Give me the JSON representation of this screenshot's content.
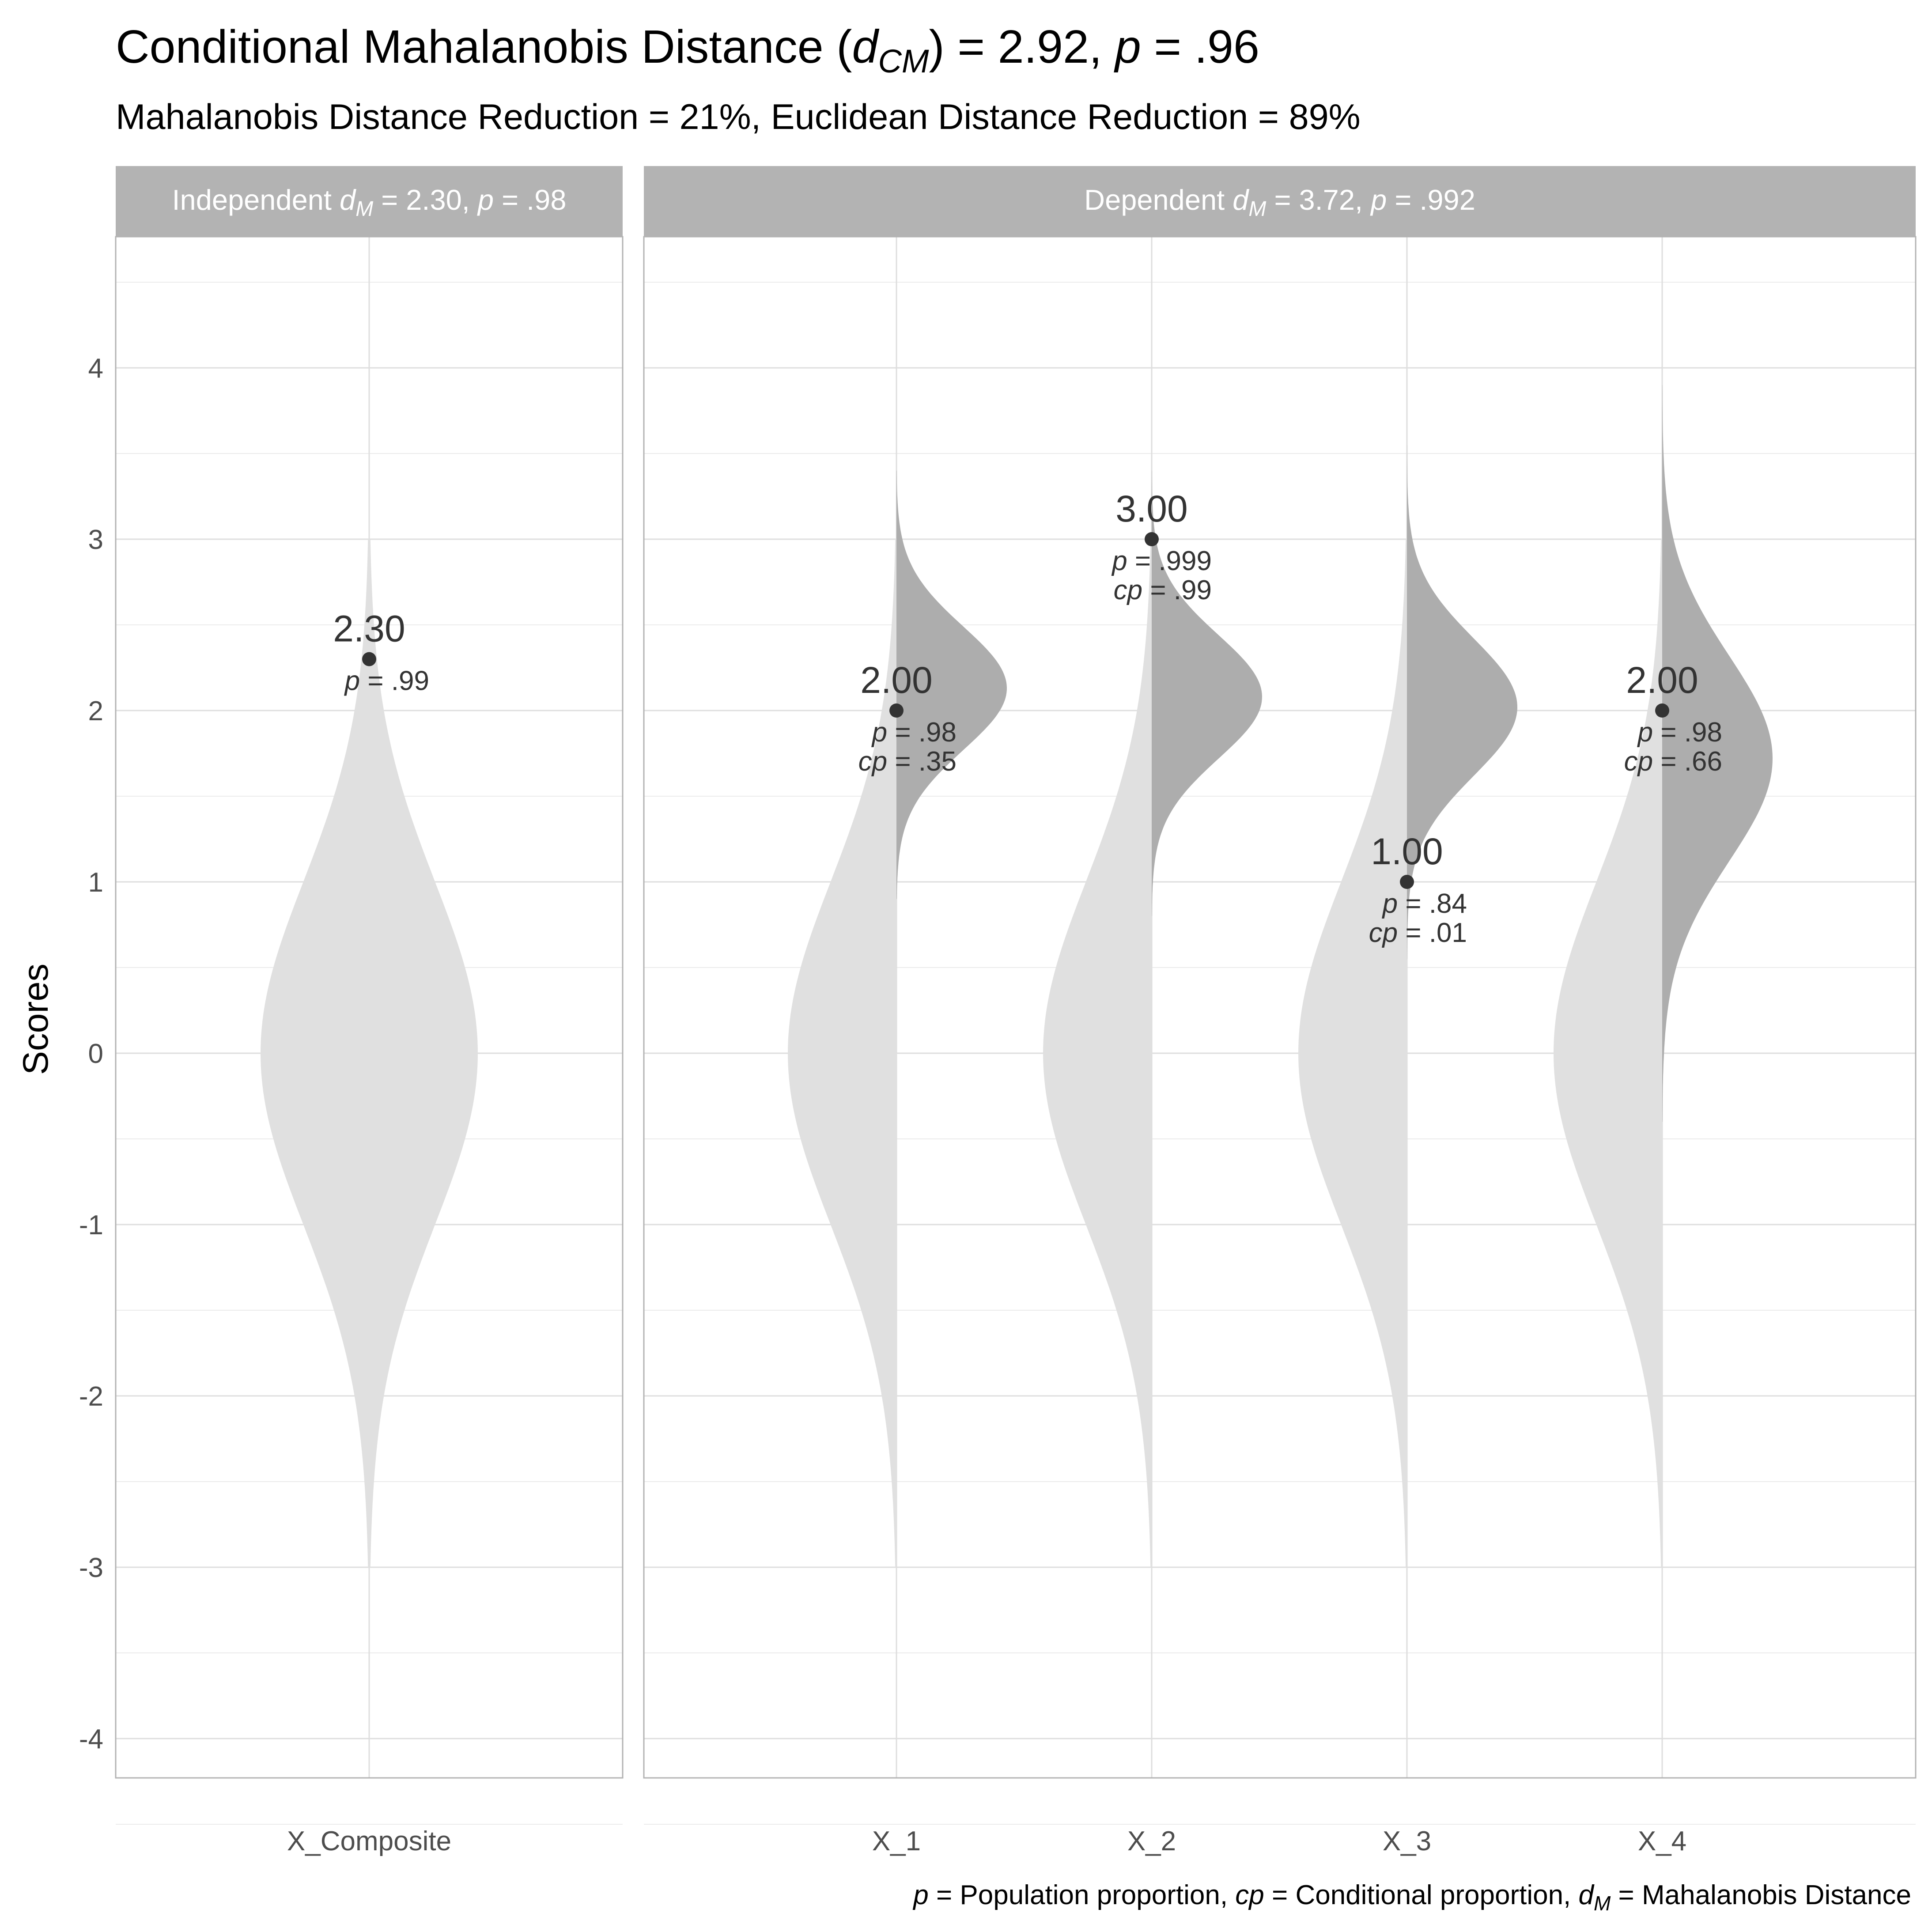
{
  "title": {
    "pre": "Conditional Mahalanobis Distance (",
    "var": "d",
    "sub": "CM",
    "mid": ") = 2.92, ",
    "pvar": "p",
    "post": " = .96"
  },
  "subtitle": "Mahalanobis Distance Reduction = 21%, Euclidean Distance Reduction = 89%",
  "caption": {
    "p_var": "p",
    "p_text": " = Population proportion, ",
    "cp_var": "cp",
    "cp_text": " = Conditional proportion, ",
    "d_var": "d",
    "d_sub": "M",
    "d_text": " = Mahalanobis Distance"
  },
  "colors": {
    "background": "#ffffff",
    "strip": "#b3b3b3",
    "marginal_violin": "#e0e0e0",
    "conditional_violin": "#adadad",
    "point": "#333333",
    "grid_major": "#dedede",
    "grid_minor": "#ebebeb"
  },
  "chart_data": {
    "type": "violin",
    "ylabel": "Scores",
    "ylim": [
      -4.6,
      4.75
    ],
    "yticks": [
      -4,
      -3,
      -2,
      -1,
      0,
      1,
      2,
      3,
      4
    ],
    "grid": true,
    "panels": [
      {
        "strip": {
          "pre": "Independent ",
          "var": "d",
          "sub": "M",
          "mid": " = 2.30, ",
          "pvar": "p",
          "post": " = .98"
        },
        "variables": [
          {
            "name": "X_Composite",
            "score": 2.3,
            "score_label": "2.30",
            "p": ".99",
            "marginal": {
              "mean": 0,
              "sd": 1,
              "range": [
                -3,
                3
              ]
            }
          }
        ]
      },
      {
        "strip": {
          "pre": "Dependent ",
          "var": "d",
          "sub": "M",
          "mid": " = 3.72, ",
          "pvar": "p",
          "post": " = .992"
        },
        "variables": [
          {
            "name": "X_1",
            "score": 2.0,
            "score_label": "2.00",
            "p": ".98",
            "cp": ".35",
            "marginal": {
              "mean": 0,
              "sd": 1,
              "range": [
                -3,
                3
              ]
            },
            "conditional": {
              "mean": 2.13,
              "sd": 0.36,
              "range": [
                0.9,
                3.4
              ]
            }
          },
          {
            "name": "X_2",
            "score": 3.0,
            "score_label": "3.00",
            "p": ".999",
            "cp": ".99",
            "marginal": {
              "mean": 0,
              "sd": 1,
              "range": [
                -3,
                3
              ]
            },
            "conditional": {
              "mean": 2.08,
              "sd": 0.36,
              "range": [
                0.8,
                3.4
              ]
            }
          },
          {
            "name": "X_3",
            "score": 1.0,
            "score_label": "1.00",
            "p": ".84",
            "cp": ".01",
            "marginal": {
              "mean": 0,
              "sd": 1,
              "range": [
                -3,
                3
              ]
            },
            "conditional": {
              "mean": 2.02,
              "sd": 0.4,
              "range": [
                0.55,
                3.55
              ]
            }
          },
          {
            "name": "X_4",
            "score": 2.0,
            "score_label": "2.00",
            "p": ".98",
            "cp": ".66",
            "marginal": {
              "mean": 0,
              "sd": 1,
              "range": [
                -3,
                3
              ]
            },
            "conditional": {
              "mean": 1.72,
              "sd": 0.6,
              "range": [
                -0.4,
                3.9
              ]
            }
          }
        ]
      }
    ]
  }
}
